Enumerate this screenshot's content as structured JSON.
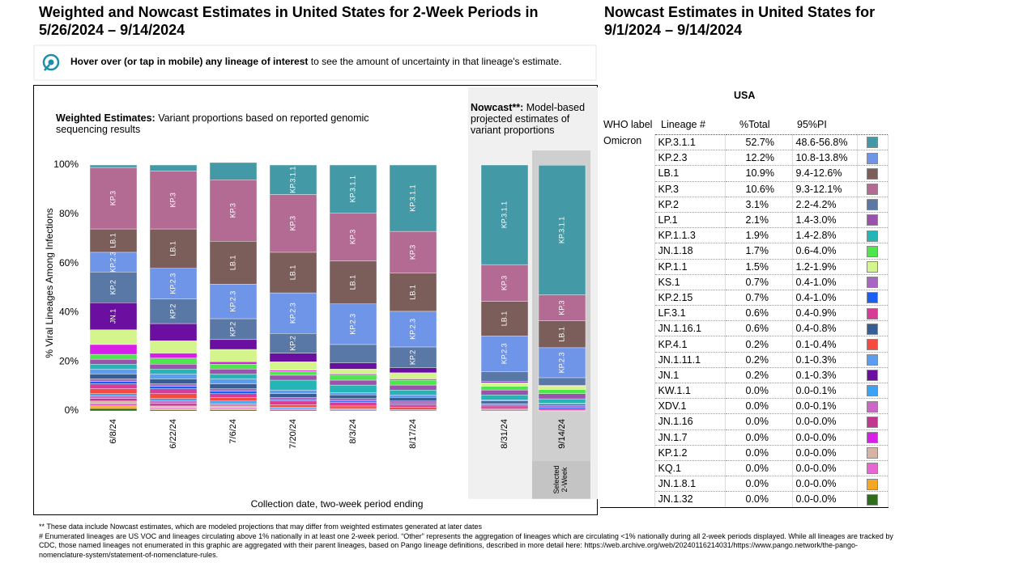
{
  "header": {
    "title": "Weighted and Nowcast Estimates in United States for 2-Week Periods in 5/26/2024 – 9/14/2024",
    "table_title": "Nowcast Estimates in United States for 9/1/2024 – 9/14/2024"
  },
  "hint": {
    "bold": "Hover over (or tap in mobile) any lineage of interest",
    "text": " to see the amount of uncertainty in that lineage's estimate."
  },
  "chart_data": [
    {
      "type": "bar",
      "stacked": true,
      "title": "Weighted Estimates:",
      "subtitle": " Variant proportions based on reported genomic sequencing results",
      "y_label": "% Viral Lineages Among Infections",
      "x_label": "Collection date, two-week period ending",
      "categories": [
        "6/8/24",
        "6/22/24",
        "7/6/24",
        "7/20/24",
        "8/3/24",
        "8/17/24"
      ],
      "ylim": [
        0,
        100
      ],
      "yticks": [
        {
          "value": 0,
          "label": "0%"
        },
        {
          "value": 20,
          "label": "20%"
        },
        {
          "value": 40,
          "label": "40%"
        },
        {
          "value": 60,
          "label": "60%"
        },
        {
          "value": 80,
          "label": "80%"
        },
        {
          "value": 100,
          "label": "100%"
        }
      ],
      "series": [
        {
          "name": "JN.1.32",
          "color": "#2d6e1d",
          "values": [
            1,
            0.5,
            0.5,
            0,
            0,
            0
          ]
        },
        {
          "name": "JN.1.8.1",
          "color": "#f5a623",
          "values": [
            1,
            0.5,
            0.5,
            0,
            0,
            0
          ]
        },
        {
          "name": "KQ.1",
          "color": "#e866d3",
          "values": [
            1,
            0.5,
            0.5,
            0,
            0,
            0
          ]
        },
        {
          "name": "KP.1.2",
          "color": "#d7b3a5",
          "values": [
            1,
            0.5,
            0.5,
            0,
            0,
            0
          ]
        },
        {
          "name": "JN.1.16",
          "color": "#c0398e",
          "values": [
            1,
            1,
            0.5,
            0.5,
            0,
            0
          ]
        },
        {
          "name": "XDV.1",
          "color": "#cc66c7",
          "values": [
            1,
            1,
            0.5,
            0.5,
            0.5,
            0
          ]
        },
        {
          "name": "KW.1.1",
          "color": "#3ba3f5",
          "values": [
            1,
            1,
            1,
            0.5,
            0.5,
            0.5
          ]
        },
        {
          "name": "KP.4.1",
          "color": "#f54a3d",
          "values": [
            2,
            2,
            1.5,
            1,
            1,
            1
          ]
        },
        {
          "name": "LF.3.1",
          "color": "#d83c96",
          "values": [
            2,
            2,
            1.5,
            1.5,
            1.5,
            1
          ]
        },
        {
          "name": "KP.2.15",
          "color": "#1a5ef5",
          "values": [
            1,
            1,
            1,
            0.5,
            0.5,
            0.5
          ]
        },
        {
          "name": "KS.1",
          "color": "#a865c2",
          "values": [
            1,
            1,
            1,
            1,
            1,
            1
          ]
        },
        {
          "name": "JN.1.16.1",
          "color": "#355e94",
          "values": [
            2,
            2,
            2,
            1.5,
            1.5,
            1.5
          ]
        },
        {
          "name": "JN.1.11.1",
          "color": "#5b9df0",
          "values": [
            2,
            2,
            2,
            1.5,
            1,
            1
          ]
        },
        {
          "name": "KP.1.1.3",
          "color": "#26b5b5",
          "values": [
            2,
            2,
            2,
            4,
            3,
            2
          ]
        },
        {
          "name": "LP.1",
          "color": "#9b52ad",
          "values": [
            2,
            2,
            2,
            2,
            2,
            2
          ]
        },
        {
          "name": "JN.1.18",
          "color": "#4de64d",
          "values": [
            2,
            2.5,
            2,
            1.5,
            2,
            2
          ]
        },
        {
          "name": "JN.1.7",
          "color": "#d81fe8",
          "values": [
            4,
            2,
            1,
            0.5,
            0.5,
            0.5
          ]
        },
        {
          "name": "KP.1.1",
          "color": "#d4f58c",
          "values": [
            6,
            5,
            5,
            3.5,
            2,
            2.5
          ]
        },
        {
          "name": "JN.1",
          "color": "#6a0fa0",
          "values": [
            11,
            7,
            4,
            3.5,
            2.5,
            2
          ]
        },
        {
          "name": "KP.2",
          "color": "#5a78a6",
          "values": [
            12.5,
            10,
            8.5,
            8,
            7.5,
            8.5
          ]
        },
        {
          "name": "KP.2.3",
          "color": "#6f95e8",
          "values": [
            8,
            12.5,
            14,
            16.5,
            16.5,
            14.5
          ]
        },
        {
          "name": "LB.1",
          "color": "#7b5d5a",
          "values": [
            9.5,
            16,
            17.5,
            16.5,
            17.5,
            15.5
          ]
        },
        {
          "name": "KP.3",
          "color": "#b36a93",
          "values": [
            25,
            23.5,
            25,
            23.5,
            19.5,
            17
          ]
        },
        {
          "name": "KP.3.1.1",
          "color": "#4499a6",
          "values": [
            1,
            2.5,
            7,
            12,
            19.5,
            27
          ]
        }
      ]
    },
    {
      "type": "bar",
      "stacked": true,
      "title": "Nowcast**:",
      "subtitle": " Model-based projected estimates of variant proportions",
      "annotation": "Selected 2-Week",
      "categories": [
        "8/31/24",
        "9/14/24"
      ],
      "ylim": [
        0,
        100
      ],
      "series": [
        {
          "name": "JN.1.32",
          "color": "#2d6e1d",
          "values": [
            0,
            0
          ]
        },
        {
          "name": "JN.1.8.1",
          "color": "#f5a623",
          "values": [
            0,
            0
          ]
        },
        {
          "name": "KQ.1",
          "color": "#e866d3",
          "values": [
            0,
            0
          ]
        },
        {
          "name": "KP.1.2",
          "color": "#d7b3a5",
          "values": [
            0,
            0
          ]
        },
        {
          "name": "JN.1.16",
          "color": "#c0398e",
          "values": [
            0,
            0
          ]
        },
        {
          "name": "XDV.1",
          "color": "#cc66c7",
          "values": [
            0,
            0
          ]
        },
        {
          "name": "KW.1.1",
          "color": "#3ba3f5",
          "values": [
            0.5,
            0
          ]
        },
        {
          "name": "KP.4.1",
          "color": "#f54a3d",
          "values": [
            0.5,
            0.2
          ]
        },
        {
          "name": "LF.3.1",
          "color": "#d83c96",
          "values": [
            1,
            0.6
          ]
        },
        {
          "name": "KP.2.15",
          "color": "#1a5ef5",
          "values": [
            0.5,
            0.7
          ]
        },
        {
          "name": "KS.1",
          "color": "#a865c2",
          "values": [
            0.5,
            0.7
          ]
        },
        {
          "name": "JN.1.16.1",
          "color": "#355e94",
          "values": [
            1,
            0.6
          ]
        },
        {
          "name": "JN.1.11.1",
          "color": "#5b9df0",
          "values": [
            0.5,
            0.2
          ]
        },
        {
          "name": "KP.1.1.3",
          "color": "#26b5b5",
          "values": [
            2,
            1.9
          ]
        },
        {
          "name": "LP.1",
          "color": "#9b52ad",
          "values": [
            2,
            2.1
          ]
        },
        {
          "name": "JN.1.18",
          "color": "#4de64d",
          "values": [
            1.5,
            1.7
          ]
        },
        {
          "name": "JN.1.7",
          "color": "#d81fe8",
          "values": [
            0,
            0
          ]
        },
        {
          "name": "KP.1.1",
          "color": "#d4f58c",
          "values": [
            1.5,
            1.5
          ]
        },
        {
          "name": "JN.1",
          "color": "#6a0fa0",
          "values": [
            0.5,
            0.2
          ]
        },
        {
          "name": "KP.2",
          "color": "#5a78a6",
          "values": [
            4,
            3.1
          ]
        },
        {
          "name": "KP.2.3",
          "color": "#6f95e8",
          "values": [
            14.5,
            12.2
          ]
        },
        {
          "name": "LB.1",
          "color": "#7b5d5a",
          "values": [
            14,
            10.9
          ]
        },
        {
          "name": "KP.3",
          "color": "#b36a93",
          "values": [
            15,
            10.6
          ]
        },
        {
          "name": "KP.3.1.1",
          "color": "#4499a6",
          "values": [
            40.5,
            52.7
          ]
        }
      ]
    }
  ],
  "table": {
    "region": "USA",
    "columns": [
      "WHO label",
      "Lineage #",
      "%Total",
      "95%PI"
    ],
    "who_label": "Omicron",
    "rows": [
      {
        "lineage": "KP.3.1.1",
        "total": "52.7%",
        "pi": "48.6-56.8%",
        "color": "#4499a6"
      },
      {
        "lineage": "KP.2.3",
        "total": "12.2%",
        "pi": "10.8-13.8%",
        "color": "#6f95e8"
      },
      {
        "lineage": "LB.1",
        "total": "10.9%",
        "pi": "9.4-12.6%",
        "color": "#7b5d5a"
      },
      {
        "lineage": "KP.3",
        "total": "10.6%",
        "pi": "9.3-12.1%",
        "color": "#b36a93"
      },
      {
        "lineage": "KP.2",
        "total": "3.1%",
        "pi": "2.2-4.2%",
        "color": "#5a78a6"
      },
      {
        "lineage": "LP.1",
        "total": "2.1%",
        "pi": "1.4-3.0%",
        "color": "#9b52ad"
      },
      {
        "lineage": "KP.1.1.3",
        "total": "1.9%",
        "pi": "1.4-2.8%",
        "color": "#26b5b5"
      },
      {
        "lineage": "JN.1.18",
        "total": "1.7%",
        "pi": "0.6-4.0%",
        "color": "#4de64d"
      },
      {
        "lineage": "KP.1.1",
        "total": "1.5%",
        "pi": "1.2-1.9%",
        "color": "#d4f58c"
      },
      {
        "lineage": "KS.1",
        "total": "0.7%",
        "pi": "0.4-1.0%",
        "color": "#a865c2"
      },
      {
        "lineage": "KP.2.15",
        "total": "0.7%",
        "pi": "0.4-1.0%",
        "color": "#1a5ef5"
      },
      {
        "lineage": "LF.3.1",
        "total": "0.6%",
        "pi": "0.4-0.9%",
        "color": "#d83c96"
      },
      {
        "lineage": "JN.1.16.1",
        "total": "0.6%",
        "pi": "0.4-0.8%",
        "color": "#355e94"
      },
      {
        "lineage": "KP.4.1",
        "total": "0.2%",
        "pi": "0.1-0.4%",
        "color": "#f54a3d"
      },
      {
        "lineage": "JN.1.11.1",
        "total": "0.2%",
        "pi": "0.1-0.3%",
        "color": "#5b9df0"
      },
      {
        "lineage": "JN.1",
        "total": "0.2%",
        "pi": "0.1-0.3%",
        "color": "#6a0fa0"
      },
      {
        "lineage": "KW.1.1",
        "total": "0.0%",
        "pi": "0.0-0.1%",
        "color": "#3ba3f5"
      },
      {
        "lineage": "XDV.1",
        "total": "0.0%",
        "pi": "0.0-0.1%",
        "color": "#cc66c7"
      },
      {
        "lineage": "JN.1.16",
        "total": "0.0%",
        "pi": "0.0-0.0%",
        "color": "#c0398e"
      },
      {
        "lineage": "JN.1.7",
        "total": "0.0%",
        "pi": "0.0-0.0%",
        "color": "#d81fe8"
      },
      {
        "lineage": "KP.1.2",
        "total": "0.0%",
        "pi": "0.0-0.0%",
        "color": "#d7b3a5"
      },
      {
        "lineage": "KQ.1",
        "total": "0.0%",
        "pi": "0.0-0.0%",
        "color": "#e866d3"
      },
      {
        "lineage": "JN.1.8.1",
        "total": "0.0%",
        "pi": "0.0-0.0%",
        "color": "#f5a623"
      },
      {
        "lineage": "JN.1.32",
        "total": "0.0%",
        "pi": "0.0-0.0%",
        "color": "#2d6e1d"
      }
    ]
  },
  "footnotes": [
    "**      These data include Nowcast estimates, which are modeled projections that may differ from weighted estimates generated at later dates",
    "# Enumerated lineages are US VOC and lineages circulating above 1% nationally in at least one 2-week period. “Other” represents the aggregation of lineages which are circulating <1% nationally during all 2-week periods displayed.  While all lineages are tracked by CDC, those named lineages not enumerated in this graphic are aggregated with their parent lineages, based on Pango lineage definitions, described in more detail here: https://web.archive.org/web/20240116214031/https://www.pango.network/the-pango-nomenclature-system/statement-of-nomenclature-rules."
  ]
}
